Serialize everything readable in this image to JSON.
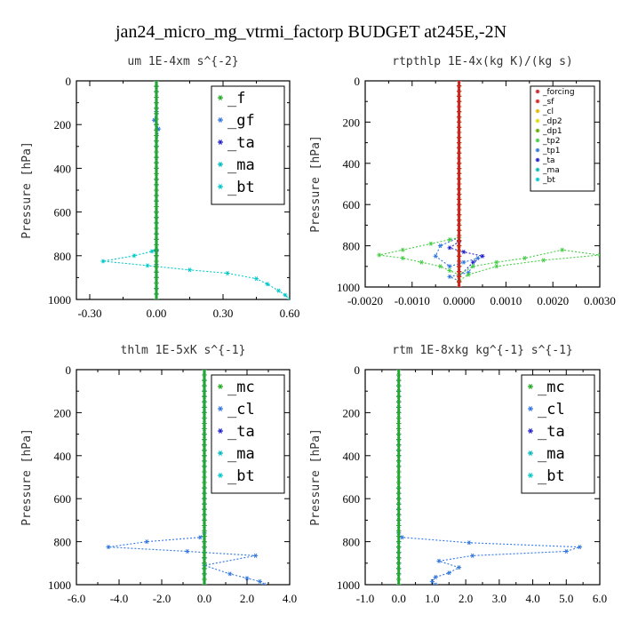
{
  "figure": {
    "title": "jan24_micro_mg_vtrmi_factorp  BUDGET at245E,-2N"
  },
  "chart_data": [
    {
      "type": "line",
      "title": "um  1E-4xm s^{-2}",
      "ylabel": "Pressure [hPa]",
      "xlim": [
        -0.36,
        0.6
      ],
      "ylim": [
        0,
        1000
      ],
      "xticks": [
        -0.3,
        0.0,
        0.3,
        0.6
      ],
      "xtick_labels": [
        "-0.30",
        "0.00",
        "0.30",
        "0.60"
      ],
      "yticks": [
        0,
        200,
        400,
        600,
        800,
        1000
      ],
      "ytick_labels": [
        "0",
        "200",
        "400",
        "600",
        "800",
        "1000"
      ],
      "legend_position": "top-right",
      "legend_size": "large",
      "series": [
        {
          "name": "_f",
          "color": "#22aa22",
          "marker": "star",
          "x": [
            0,
            0,
            0,
            0,
            0,
            0,
            0,
            0,
            0,
            0,
            0
          ],
          "y": [
            0,
            100,
            200,
            300,
            400,
            500,
            600,
            700,
            800,
            900,
            1000
          ]
        },
        {
          "name": "_gf",
          "color": "#3377dd",
          "marker": "star",
          "x": [
            0.0,
            0.0,
            -0.01,
            0.01,
            0.0,
            0.0,
            0.0,
            0.0,
            0.0,
            0.0,
            0.0
          ],
          "y": [
            0,
            140,
            180,
            220,
            300,
            500,
            700,
            780,
            840,
            900,
            1000
          ]
        },
        {
          "name": "_ta",
          "color": "#2222cc",
          "marker": "star",
          "x": [
            0,
            0,
            0,
            0,
            0,
            0,
            0,
            0,
            0
          ],
          "y": [
            0,
            200,
            400,
            600,
            800,
            850,
            900,
            950,
            1000
          ]
        },
        {
          "name": "_ma",
          "color": "#00bbbb",
          "marker": "dash",
          "x": [
            0,
            0,
            0,
            0,
            0,
            0,
            0
          ],
          "y": [
            0,
            200,
            400,
            600,
            800,
            900,
            1000
          ]
        },
        {
          "name": "_bt",
          "color": "#00c8c8",
          "marker": "star",
          "x": [
            0.0,
            0.0,
            0.0,
            0.0,
            -0.02,
            -0.1,
            -0.24,
            -0.04,
            0.15,
            0.32,
            0.45,
            0.5,
            0.55,
            0.58,
            0.6
          ],
          "y": [
            0,
            200,
            600,
            770,
            780,
            800,
            825,
            845,
            865,
            880,
            905,
            930,
            960,
            980,
            1000
          ]
        }
      ]
    },
    {
      "type": "line",
      "title": "rtpthlp  1E-4x(kg K)/(kg s)",
      "ylabel": "Pressure [hPa]",
      "xlim": [
        -0.002,
        0.003
      ],
      "ylim": [
        0,
        1000
      ],
      "xticks": [
        -0.002,
        -0.001,
        0.0,
        0.001,
        0.002,
        0.003
      ],
      "xtick_labels": [
        "-0.0020",
        "-0.0010",
        "0.0000",
        "0.0010",
        "0.0020",
        "0.0030"
      ],
      "yticks": [
        0,
        200,
        400,
        600,
        800,
        1000
      ],
      "ytick_labels": [
        "0",
        "200",
        "400",
        "600",
        "800",
        "1000"
      ],
      "legend_position": "top-right",
      "legend_size": "small",
      "series": [
        {
          "name": "_forcing",
          "color": "#cc2222",
          "marker": "star",
          "x": [
            0,
            0,
            0,
            0,
            0,
            0,
            0,
            0,
            0,
            0,
            0
          ],
          "y": [
            0,
            100,
            200,
            300,
            400,
            500,
            600,
            700,
            800,
            900,
            1000
          ]
        },
        {
          "name": "_sf",
          "color": "#dd2222",
          "marker": "star",
          "x": [
            0,
            0,
            0,
            0,
            0,
            0
          ],
          "y": [
            0,
            200,
            400,
            600,
            800,
            1000
          ]
        },
        {
          "name": "_cl",
          "color": "#ddbb00",
          "marker": "star",
          "x": [
            0,
            0,
            0,
            0,
            0,
            0
          ],
          "y": [
            0,
            200,
            400,
            600,
            800,
            1000
          ]
        },
        {
          "name": "_dp2",
          "color": "#dddd00",
          "marker": "dash",
          "x": [
            0,
            0,
            0,
            0,
            0,
            0
          ],
          "y": [
            0,
            200,
            400,
            600,
            800,
            1000
          ]
        },
        {
          "name": "_dp1",
          "color": "#66aa00",
          "marker": "star",
          "x": [
            0,
            0,
            0,
            0,
            0,
            0
          ],
          "y": [
            0,
            200,
            400,
            600,
            800,
            1000
          ]
        },
        {
          "name": "_tp2",
          "color": "#44cc44",
          "marker": "star",
          "x": [
            0.0,
            0.0,
            -0.0002,
            -0.0006,
            -0.0012,
            -0.0017,
            -0.0012,
            -0.0008,
            -0.0004,
            -0.0002,
            0.0,
            0.0003,
            0.0008,
            0.0014,
            0.0022,
            0.003,
            0.0018,
            0.0008,
            0.0002,
            0.0,
            0.0
          ],
          "y": [
            0,
            760,
            770,
            790,
            820,
            845,
            860,
            880,
            900,
            920,
            940,
            900,
            880,
            860,
            820,
            845,
            870,
            900,
            940,
            970,
            1000
          ]
        },
        {
          "name": "_tp1",
          "color": "#3377dd",
          "marker": "star",
          "x": [
            0.0,
            0.0,
            -0.0004,
            -0.0005,
            -0.0002,
            0.0001,
            0.0004,
            0.0002,
            -0.0002,
            0.0,
            0.0
          ],
          "y": [
            0,
            760,
            800,
            850,
            900,
            880,
            860,
            930,
            950,
            970,
            1000
          ]
        },
        {
          "name": "_ta",
          "color": "#2222cc",
          "marker": "star",
          "x": [
            0.0,
            0.0,
            -0.0002,
            0.0001,
            0.0005,
            0.0003,
            0.0,
            0.0
          ],
          "y": [
            0,
            780,
            810,
            830,
            850,
            880,
            950,
            1000
          ]
        },
        {
          "name": "_ma",
          "color": "#00bbbb",
          "marker": "dash",
          "x": [
            0,
            0,
            0,
            0,
            0,
            0
          ],
          "y": [
            0,
            200,
            400,
            600,
            800,
            1000
          ]
        },
        {
          "name": "_bt",
          "color": "#00c8c8",
          "marker": "star",
          "x": [
            0,
            0,
            0,
            0,
            0,
            0
          ],
          "y": [
            0,
            200,
            400,
            600,
            800,
            1000
          ]
        }
      ]
    },
    {
      "type": "line",
      "title": "thlm  1E-5xK s^{-1}",
      "ylabel": "Pressure [hPa]",
      "xlim": [
        -6.0,
        4.0
      ],
      "ylim": [
        0,
        1000
      ],
      "xticks": [
        -6,
        -4,
        -2,
        0,
        2,
        4
      ],
      "xtick_labels": [
        "-6.0",
        "-4.0",
        "-2.0",
        "0.0",
        "2.0",
        "4.0"
      ],
      "yticks": [
        0,
        200,
        400,
        600,
        800,
        1000
      ],
      "ytick_labels": [
        "0",
        "200",
        "400",
        "600",
        "800",
        "1000"
      ],
      "legend_position": "top-right",
      "legend_size": "large",
      "series": [
        {
          "name": "_mc",
          "color": "#22aa22",
          "marker": "star",
          "x": [
            0,
            0,
            0,
            0,
            0,
            0,
            0,
            0,
            0,
            0,
            0
          ],
          "y": [
            0,
            100,
            200,
            300,
            400,
            500,
            600,
            700,
            800,
            900,
            1000
          ]
        },
        {
          "name": "_cl",
          "color": "#3377dd",
          "marker": "star",
          "x": [
            0.0,
            0.0,
            -0.2,
            -2.7,
            -4.5,
            -0.8,
            2.4,
            0.0,
            1.2,
            2.0,
            2.6,
            2.8
          ],
          "y": [
            0,
            760,
            780,
            800,
            825,
            845,
            865,
            910,
            950,
            970,
            985,
            1000
          ]
        },
        {
          "name": "_ta",
          "color": "#2222cc",
          "marker": "star",
          "x": [
            0,
            0,
            0,
            0,
            0,
            0,
            0
          ],
          "y": [
            0,
            200,
            400,
            600,
            800,
            900,
            1000
          ]
        },
        {
          "name": "_ma",
          "color": "#00bbbb",
          "marker": "dash",
          "x": [
            0,
            0,
            0,
            0,
            0,
            0
          ],
          "y": [
            0,
            200,
            400,
            600,
            800,
            1000
          ]
        },
        {
          "name": "_bt",
          "color": "#00c8c8",
          "marker": "star",
          "x": [
            0,
            0,
            0,
            0,
            0,
            0,
            0,
            0,
            0,
            0,
            0
          ],
          "y": [
            0,
            100,
            200,
            300,
            400,
            500,
            600,
            700,
            800,
            900,
            1000
          ]
        }
      ]
    },
    {
      "type": "line",
      "title": "rtm  1E-8xkg kg^{-1} s^{-1}",
      "ylabel": "Pressure [hPa]",
      "xlim": [
        -1.0,
        6.0
      ],
      "ylim": [
        0,
        1000
      ],
      "xticks": [
        -1,
        0,
        1,
        2,
        3,
        4,
        5,
        6
      ],
      "xtick_labels": [
        "-1.0",
        "0.0",
        "1.0",
        "2.0",
        "3.0",
        "4.0",
        "5.0",
        "6.0"
      ],
      "yticks": [
        0,
        200,
        400,
        600,
        800,
        1000
      ],
      "ytick_labels": [
        "0",
        "200",
        "400",
        "600",
        "800",
        "1000"
      ],
      "legend_position": "top-right",
      "legend_size": "large",
      "series": [
        {
          "name": "_mc",
          "color": "#22aa22",
          "marker": "star",
          "x": [
            0,
            0,
            0,
            0,
            0,
            0,
            0,
            0,
            0,
            0,
            0
          ],
          "y": [
            0,
            100,
            200,
            300,
            400,
            500,
            600,
            700,
            800,
            900,
            1000
          ]
        },
        {
          "name": "_cl",
          "color": "#3377dd",
          "marker": "star",
          "x": [
            0.0,
            0.0,
            0.1,
            2.1,
            5.4,
            5.0,
            2.2,
            1.2,
            1.8,
            1.5,
            1.1,
            1.0,
            1.1
          ],
          "y": [
            0,
            760,
            780,
            805,
            825,
            845,
            865,
            890,
            920,
            945,
            965,
            985,
            1000
          ]
        },
        {
          "name": "_ta",
          "color": "#2222cc",
          "marker": "star",
          "x": [
            0,
            0,
            0,
            0,
            0,
            0,
            0
          ],
          "y": [
            0,
            200,
            400,
            600,
            800,
            900,
            1000
          ]
        },
        {
          "name": "_ma",
          "color": "#00bbbb",
          "marker": "dash",
          "x": [
            0,
            0,
            0,
            0,
            0,
            0
          ],
          "y": [
            0,
            200,
            400,
            600,
            800,
            1000
          ]
        },
        {
          "name": "_bt",
          "color": "#00c8c8",
          "marker": "star",
          "x": [
            0,
            0,
            0,
            0,
            0,
            0,
            0,
            0,
            0,
            0,
            0
          ],
          "y": [
            0,
            100,
            200,
            300,
            400,
            500,
            600,
            700,
            800,
            900,
            1000
          ]
        }
      ]
    }
  ]
}
